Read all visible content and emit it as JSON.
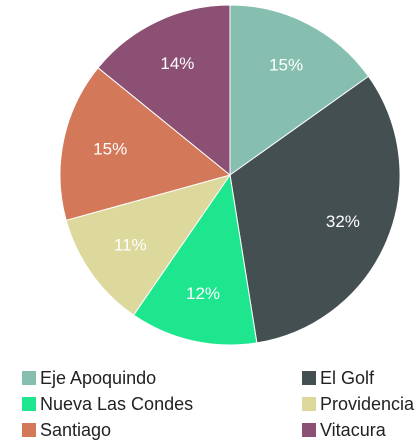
{
  "chart_data": {
    "type": "pie",
    "categories": [
      "Eje Apoquindo",
      "El Golf",
      "Nueva Las Condes",
      "Providencia",
      "Santiago",
      "Vitacura"
    ],
    "values": [
      15,
      32,
      12,
      11,
      15,
      14
    ],
    "value_labels": [
      "15%",
      "32%",
      "12%",
      "11%",
      "15%",
      "14%"
    ],
    "colors": [
      "#86bfb0",
      "#434f50",
      "#1de68f",
      "#ddd89c",
      "#d4785a",
      "#8b5074"
    ],
    "legend": "bottom"
  }
}
